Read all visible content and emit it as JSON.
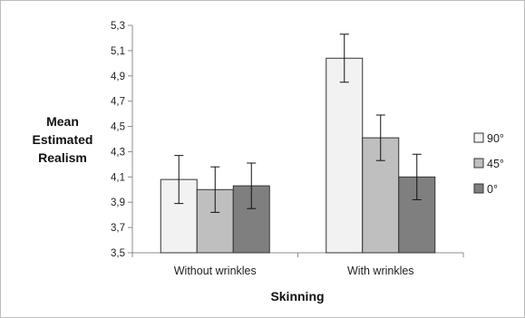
{
  "chart_data": {
    "type": "bar",
    "title": "",
    "xlabel": "Skinning",
    "ylabel_lines": [
      "Mean",
      "Estimated",
      "Realism"
    ],
    "categories": [
      "Without wrinkles",
      "With wrinkles"
    ],
    "ylim": [
      3.5,
      5.3
    ],
    "yticks": [
      "3,5",
      "3,7",
      "3,9",
      "4,1",
      "4,3",
      "4,5",
      "4,7",
      "4,9",
      "5,1",
      "5,3"
    ],
    "grid": false,
    "legend_position": "right",
    "error_bars": true,
    "series": [
      {
        "name": "90°",
        "color": "#f2f2f2",
        "values": [
          4.08,
          5.04
        ],
        "error": [
          0.19,
          0.19
        ]
      },
      {
        "name": "45°",
        "color": "#bfbfbf",
        "values": [
          4.0,
          4.41
        ],
        "error": [
          0.18,
          0.18
        ]
      },
      {
        "name": "0°",
        "color": "#7f7f7f",
        "values": [
          4.03,
          4.1
        ],
        "error": [
          0.18,
          0.18
        ]
      }
    ]
  }
}
